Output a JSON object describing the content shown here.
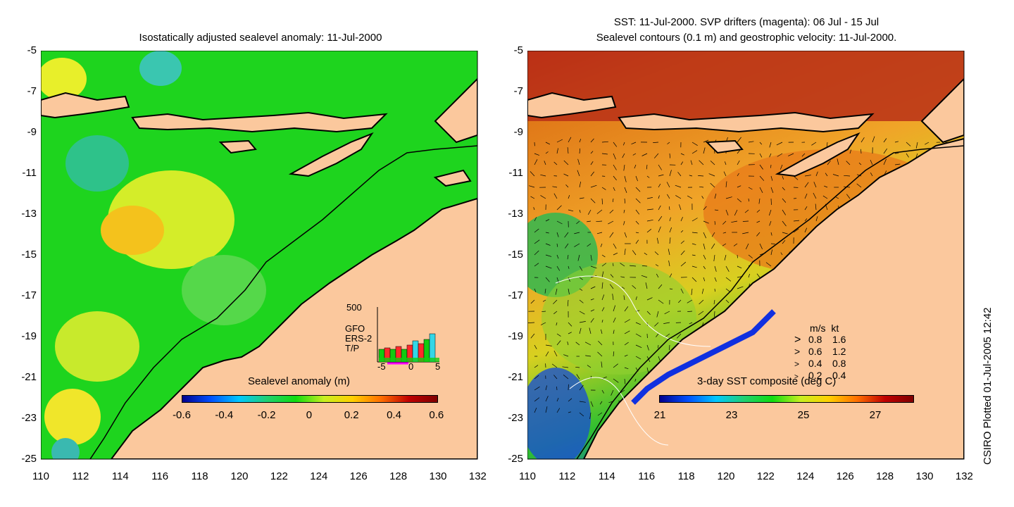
{
  "left_panel": {
    "title": "Isostatically adjusted sealevel anomaly: 11-Jul-2000",
    "colorbar_title": "Sealevel anomaly (m)",
    "colorbar_ticks": [
      "-0.6",
      "-0.4",
      "-0.2",
      "0",
      "0.2",
      "0.4",
      "0.6"
    ],
    "inset": {
      "ymax_label": "500",
      "xticks": [
        "-5",
        "0",
        "5"
      ],
      "legend": [
        {
          "label": "GFO",
          "color": "#ff2a2a"
        },
        {
          "label": "ERS-2",
          "color": "#33d6e6"
        },
        {
          "label": "T/P",
          "color": "#11cc11"
        }
      ]
    }
  },
  "right_panel": {
    "title_line1": "SST: 11-Jul-2000. SVP drifters (magenta): 06 Jul - 15 Jul",
    "title_line2": "Sealevel contours (0.1 m) and geostrophic velocity: 11-Jul-2000.",
    "colorbar_title": "3-day SST composite (deg C)",
    "colorbar_ticks": [
      "21",
      "23",
      "25",
      "27"
    ],
    "velocity_legend": {
      "header_ms": "m/s",
      "header_kt": "kt",
      "rows": [
        {
          "ms": "0.8",
          "kt": "1.6"
        },
        {
          "ms": "0.6",
          "kt": "1.2"
        },
        {
          "ms": "0.4",
          "kt": "0.8"
        },
        {
          "ms": "0.2",
          "kt": "0.4"
        }
      ]
    }
  },
  "axes": {
    "y_ticks": [
      "-5",
      "-7",
      "-9",
      "-11",
      "-13",
      "-15",
      "-17",
      "-19",
      "-21",
      "-23",
      "-25"
    ],
    "x_ticks": [
      "110",
      "112",
      "114",
      "116",
      "118",
      "120",
      "122",
      "124",
      "126",
      "128",
      "130",
      "132"
    ],
    "lon_range": [
      110,
      132
    ],
    "lat_range": [
      -25,
      -5
    ]
  },
  "colors": {
    "land": "#fbc89d",
    "ocean_base": "#11dd11",
    "sst_hot": "#c02810",
    "sst_warm": "#f0a020"
  },
  "credit": "CSIRO Plotted 01-Jul-2005 12:42"
}
